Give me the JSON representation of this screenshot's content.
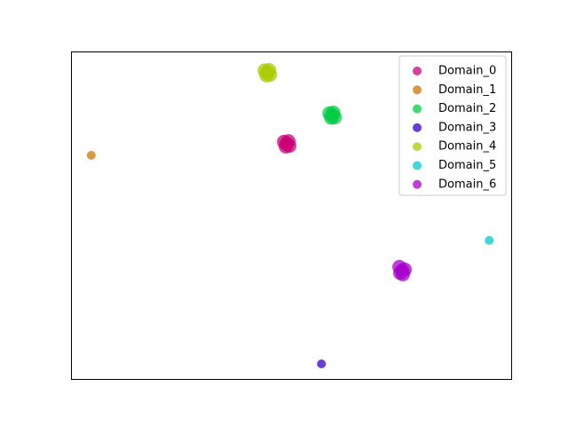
{
  "chart_data": {
    "type": "scatter",
    "xlim": [
      0,
      100
    ],
    "ylim": [
      0,
      100
    ],
    "grid": false,
    "legend": "upper right",
    "alpha": 0.75,
    "series": [
      {
        "name": "Domain_0",
        "color": "#cc0077",
        "x": [
          49.0,
          48.4,
          49.6,
          48.8,
          49.4
        ],
        "y": [
          71.8,
          72.4,
          71.2,
          71.0,
          72.6
        ]
      },
      {
        "name": "Domain_1",
        "color": "#cc7700",
        "x": [
          4.6
        ],
        "y": [
          68.3
        ]
      },
      {
        "name": "Domain_2",
        "color": "#00cc44",
        "x": [
          59.3,
          58.7,
          59.9,
          59.1,
          59.6
        ],
        "y": [
          80.5,
          81.1,
          79.9,
          79.8,
          81.3
        ]
      },
      {
        "name": "Domain_3",
        "color": "#3300cc",
        "x": [
          56.9
        ],
        "y": [
          4.6
        ]
      },
      {
        "name": "Domain_4",
        "color": "#aacc00",
        "x": [
          44.6,
          44.0,
          45.2,
          44.4,
          45.0
        ],
        "y": [
          93.5,
          94.2,
          92.9,
          92.7,
          94.3
        ]
      },
      {
        "name": "Domain_5",
        "color": "#00cccc",
        "x": [
          95.0
        ],
        "y": [
          42.3
        ]
      },
      {
        "name": "Domain_6",
        "color": "#aa00cc",
        "x": [
          75.2,
          74.6,
          75.8,
          74.8,
          75.4
        ],
        "y": [
          33.1,
          34.2,
          33.4,
          32.4,
          32.0
        ]
      }
    ]
  }
}
